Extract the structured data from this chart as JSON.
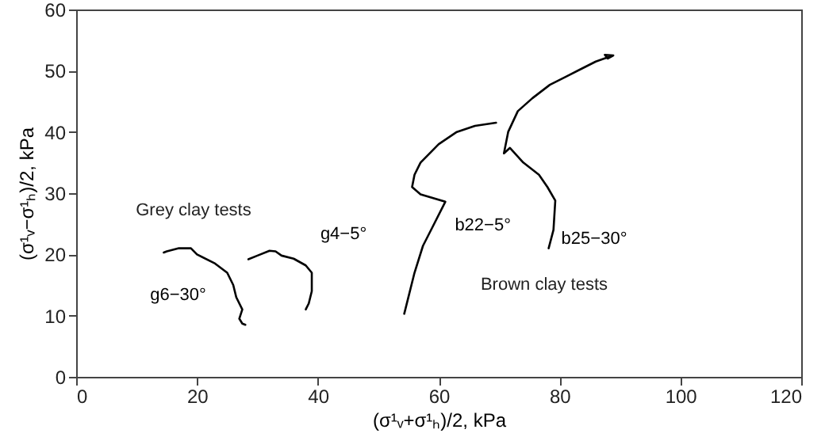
{
  "chart_data": {
    "type": "line",
    "xlabel": "(σ¹ᵥ+σ¹ₕ)/2, kPa",
    "ylabel": "(σ¹ᵥ−σ¹ₕ)/2, kPa",
    "xlim": [
      0,
      120
    ],
    "ylim": [
      0,
      60
    ],
    "xticks": [
      0,
      20,
      40,
      60,
      80,
      100,
      120
    ],
    "yticks": [
      0,
      10,
      20,
      30,
      40,
      50,
      60
    ],
    "grid": false,
    "marker": "none",
    "line_style": "solid",
    "series": [
      {
        "name": "g6−30°",
        "color": "#000000",
        "x": [
          14.5,
          15,
          17,
          19,
          20,
          23,
          25,
          26,
          26.5,
          27.5,
          27,
          27.5,
          28
        ],
        "values": [
          20.3,
          20.5,
          21,
          21,
          20,
          18.5,
          17,
          15,
          13,
          11,
          9.5,
          8.7,
          8.5
        ]
      },
      {
        "name": "g4−5°",
        "color": "#000000",
        "x": [
          28.5,
          30,
          32,
          33,
          34,
          36,
          38,
          39,
          39,
          38.5,
          38
        ],
        "values": [
          19.2,
          19.8,
          20.6,
          20.5,
          19.8,
          19.3,
          18.2,
          17,
          14,
          12,
          11
        ]
      },
      {
        "name": "b22−5°",
        "color": "#000000",
        "x": [
          54.3,
          56,
          57.4,
          59,
          61.1,
          57,
          55.6,
          56,
          57,
          60,
          63,
          66,
          69.5
        ],
        "values": [
          10.3,
          17,
          21.4,
          24.5,
          28.6,
          29.8,
          31,
          33,
          35,
          38,
          40,
          41,
          41.5
        ]
      },
      {
        "name": "b25−30°",
        "color": "#000000",
        "x": [
          78.2,
          79,
          79.3,
          78,
          76.6,
          74,
          71.8,
          70.8,
          71.5,
          73.1,
          75.5,
          78.4,
          81,
          83.6,
          86,
          88.9,
          88,
          87.5,
          88.9
        ],
        "values": [
          21,
          24,
          28.8,
          31,
          33,
          35,
          37.4,
          36.5,
          40,
          43.4,
          45.5,
          47.7,
          49,
          50.3,
          51.5,
          52.5,
          52,
          52.6,
          52.5
        ]
      }
    ],
    "annotations": [
      "Grey clay tests",
      "Brown clay tests"
    ]
  }
}
